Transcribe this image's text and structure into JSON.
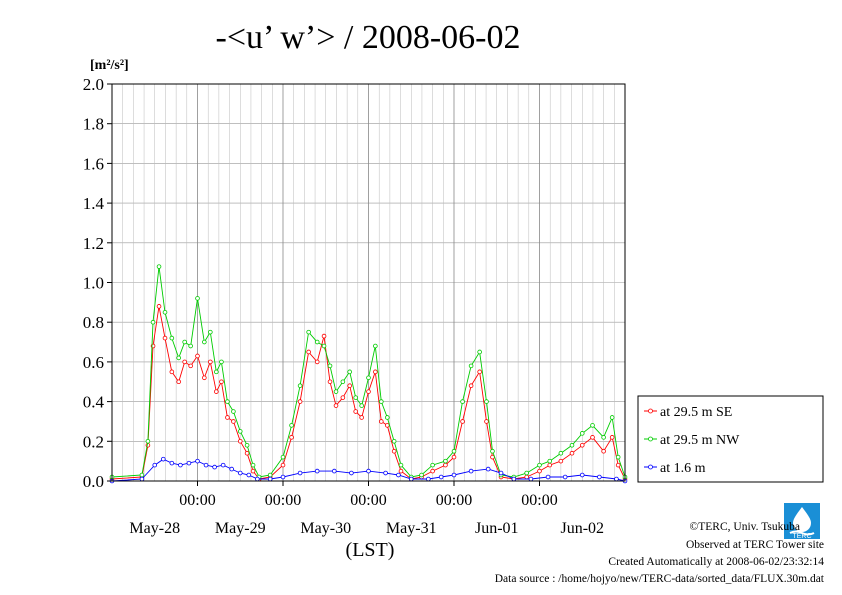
{
  "chart_data": {
    "type": "line",
    "title": "-<u’ w’> / 2008-06-02",
    "ylabel_unit": "[m²/s²]",
    "xlabel": "(LST)",
    "ylim": [
      0,
      2.0
    ],
    "yticks": [
      "0.0",
      "0.2",
      "0.4",
      "0.6",
      "0.8",
      "1.0",
      "1.2",
      "1.4",
      "1.6",
      "1.8",
      "2.0"
    ],
    "xlim_days": [
      0,
      6
    ],
    "time_ticks": [
      {
        "day": 1,
        "label": "00:00"
      },
      {
        "day": 2,
        "label": "00:00"
      },
      {
        "day": 3,
        "label": "00:00"
      },
      {
        "day": 4,
        "label": "00:00"
      },
      {
        "day": 5,
        "label": "00:00"
      }
    ],
    "date_labels": [
      {
        "center": 0.5,
        "label": "May-28"
      },
      {
        "center": 1.5,
        "label": "May-29"
      },
      {
        "center": 2.5,
        "label": "May-30"
      },
      {
        "center": 3.5,
        "label": "May-31"
      },
      {
        "center": 4.5,
        "label": "Jun-01"
      },
      {
        "center": 5.5,
        "label": "Jun-02"
      }
    ],
    "grid": true,
    "legend_position": "right",
    "series": [
      {
        "name": "at 29.5 m SE",
        "color": "#ff0000",
        "points": [
          [
            0,
            0.01
          ],
          [
            0.35,
            0.02
          ],
          [
            0.42,
            0.18
          ],
          [
            0.48,
            0.68
          ],
          [
            0.55,
            0.88
          ],
          [
            0.62,
            0.72
          ],
          [
            0.7,
            0.55
          ],
          [
            0.78,
            0.5
          ],
          [
            0.85,
            0.6
          ],
          [
            0.92,
            0.58
          ],
          [
            1.0,
            0.63
          ],
          [
            1.08,
            0.52
          ],
          [
            1.15,
            0.6
          ],
          [
            1.22,
            0.45
          ],
          [
            1.28,
            0.5
          ],
          [
            1.35,
            0.32
          ],
          [
            1.42,
            0.3
          ],
          [
            1.5,
            0.2
          ],
          [
            1.58,
            0.14
          ],
          [
            1.65,
            0.05
          ],
          [
            1.72,
            0.01
          ],
          [
            1.85,
            0.02
          ],
          [
            2.0,
            0.08
          ],
          [
            2.1,
            0.22
          ],
          [
            2.2,
            0.4
          ],
          [
            2.3,
            0.65
          ],
          [
            2.4,
            0.6
          ],
          [
            2.48,
            0.73
          ],
          [
            2.55,
            0.5
          ],
          [
            2.62,
            0.38
          ],
          [
            2.7,
            0.42
          ],
          [
            2.78,
            0.48
          ],
          [
            2.85,
            0.35
          ],
          [
            2.92,
            0.32
          ],
          [
            3.0,
            0.45
          ],
          [
            3.08,
            0.55
          ],
          [
            3.15,
            0.3
          ],
          [
            3.22,
            0.28
          ],
          [
            3.3,
            0.15
          ],
          [
            3.38,
            0.05
          ],
          [
            3.5,
            0.01
          ],
          [
            3.62,
            0.02
          ],
          [
            3.75,
            0.05
          ],
          [
            3.9,
            0.08
          ],
          [
            4.0,
            0.12
          ],
          [
            4.1,
            0.3
          ],
          [
            4.2,
            0.48
          ],
          [
            4.3,
            0.55
          ],
          [
            4.38,
            0.3
          ],
          [
            4.45,
            0.12
          ],
          [
            4.55,
            0.02
          ],
          [
            4.7,
            0.01
          ],
          [
            4.85,
            0.02
          ],
          [
            5.0,
            0.05
          ],
          [
            5.12,
            0.08
          ],
          [
            5.25,
            0.1
          ],
          [
            5.38,
            0.14
          ],
          [
            5.5,
            0.18
          ],
          [
            5.62,
            0.22
          ],
          [
            5.75,
            0.15
          ],
          [
            5.85,
            0.22
          ],
          [
            5.92,
            0.08
          ],
          [
            6.0,
            0.01
          ]
        ]
      },
      {
        "name": "at 29.5 m NW",
        "color": "#00cc00",
        "points": [
          [
            0,
            0.02
          ],
          [
            0.35,
            0.03
          ],
          [
            0.42,
            0.2
          ],
          [
            0.48,
            0.8
          ],
          [
            0.55,
            1.08
          ],
          [
            0.62,
            0.85
          ],
          [
            0.7,
            0.72
          ],
          [
            0.78,
            0.62
          ],
          [
            0.85,
            0.7
          ],
          [
            0.92,
            0.68
          ],
          [
            1.0,
            0.92
          ],
          [
            1.08,
            0.7
          ],
          [
            1.15,
            0.75
          ],
          [
            1.22,
            0.55
          ],
          [
            1.28,
            0.6
          ],
          [
            1.35,
            0.4
          ],
          [
            1.42,
            0.35
          ],
          [
            1.5,
            0.25
          ],
          [
            1.58,
            0.18
          ],
          [
            1.65,
            0.08
          ],
          [
            1.72,
            0.02
          ],
          [
            1.85,
            0.03
          ],
          [
            2.0,
            0.12
          ],
          [
            2.1,
            0.28
          ],
          [
            2.2,
            0.48
          ],
          [
            2.3,
            0.75
          ],
          [
            2.4,
            0.7
          ],
          [
            2.48,
            0.68
          ],
          [
            2.55,
            0.58
          ],
          [
            2.62,
            0.45
          ],
          [
            2.7,
            0.5
          ],
          [
            2.78,
            0.55
          ],
          [
            2.85,
            0.42
          ],
          [
            2.92,
            0.38
          ],
          [
            3.0,
            0.52
          ],
          [
            3.08,
            0.68
          ],
          [
            3.15,
            0.4
          ],
          [
            3.22,
            0.32
          ],
          [
            3.3,
            0.2
          ],
          [
            3.38,
            0.08
          ],
          [
            3.5,
            0.02
          ],
          [
            3.62,
            0.03
          ],
          [
            3.75,
            0.08
          ],
          [
            3.9,
            0.1
          ],
          [
            4.0,
            0.15
          ],
          [
            4.1,
            0.4
          ],
          [
            4.2,
            0.58
          ],
          [
            4.3,
            0.65
          ],
          [
            4.38,
            0.4
          ],
          [
            4.45,
            0.15
          ],
          [
            4.55,
            0.03
          ],
          [
            4.7,
            0.02
          ],
          [
            4.85,
            0.04
          ],
          [
            5.0,
            0.08
          ],
          [
            5.12,
            0.1
          ],
          [
            5.25,
            0.14
          ],
          [
            5.38,
            0.18
          ],
          [
            5.5,
            0.24
          ],
          [
            5.62,
            0.28
          ],
          [
            5.75,
            0.22
          ],
          [
            5.85,
            0.32
          ],
          [
            5.92,
            0.12
          ],
          [
            6.0,
            0.02
          ]
        ]
      },
      {
        "name": "at 1.6 m",
        "color": "#0000ff",
        "points": [
          [
            0,
            0.0
          ],
          [
            0.35,
            0.01
          ],
          [
            0.5,
            0.08
          ],
          [
            0.6,
            0.11
          ],
          [
            0.7,
            0.09
          ],
          [
            0.8,
            0.08
          ],
          [
            0.9,
            0.09
          ],
          [
            1.0,
            0.1
          ],
          [
            1.1,
            0.08
          ],
          [
            1.2,
            0.07
          ],
          [
            1.3,
            0.08
          ],
          [
            1.4,
            0.06
          ],
          [
            1.5,
            0.04
          ],
          [
            1.6,
            0.03
          ],
          [
            1.7,
            0.01
          ],
          [
            1.85,
            0.01
          ],
          [
            2.0,
            0.02
          ],
          [
            2.2,
            0.04
          ],
          [
            2.4,
            0.05
          ],
          [
            2.6,
            0.05
          ],
          [
            2.8,
            0.04
          ],
          [
            3.0,
            0.05
          ],
          [
            3.2,
            0.04
          ],
          [
            3.35,
            0.03
          ],
          [
            3.5,
            0.01
          ],
          [
            3.7,
            0.01
          ],
          [
            3.85,
            0.02
          ],
          [
            4.0,
            0.03
          ],
          [
            4.2,
            0.05
          ],
          [
            4.4,
            0.06
          ],
          [
            4.55,
            0.04
          ],
          [
            4.7,
            0.01
          ],
          [
            4.9,
            0.01
          ],
          [
            5.1,
            0.02
          ],
          [
            5.3,
            0.02
          ],
          [
            5.5,
            0.03
          ],
          [
            5.7,
            0.02
          ],
          [
            5.9,
            0.01
          ],
          [
            6.0,
            0.0
          ]
        ]
      }
    ]
  },
  "footer": {
    "copyright": "©TERC, Univ. Tsukuba",
    "observed": "Observed at TERC Tower site",
    "created": "Created Automatically at 2008-06-02/23:32:14",
    "source": "Data source : /home/hojyo/new/TERC-data/sorted_data/FLUX.30m.dat"
  },
  "logo": {
    "text": "TERC",
    "color": "#1a8fd6"
  }
}
